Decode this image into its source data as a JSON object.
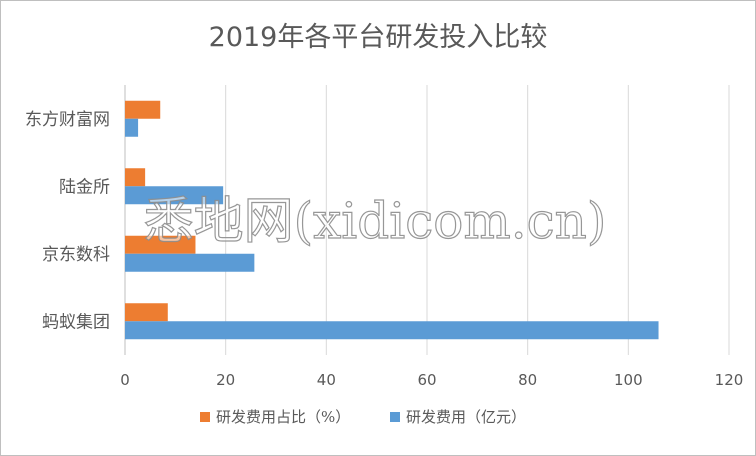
{
  "chart_data": {
    "type": "bar",
    "orientation": "horizontal",
    "title": "2019年各平台研发投入比较",
    "categories": [
      "东方财富网",
      "陆金所",
      "京东数科",
      "蚂蚁集团"
    ],
    "series": [
      {
        "name": "研发费用占比（%）",
        "color": "#ED7D31",
        "values": [
          7,
          4,
          14,
          8.5
        ]
      },
      {
        "name": "研发费用（亿元）",
        "color": "#5B9BD5",
        "values": [
          2.6,
          19.5,
          25.7,
          106
        ]
      }
    ],
    "xlim": [
      0,
      120
    ],
    "xticks": [
      "0",
      "20",
      "40",
      "60",
      "80",
      "100",
      "120"
    ],
    "grid": true,
    "legend_position": "bottom"
  },
  "watermark": {
    "text": "悉地网(xidicom.cn)"
  }
}
